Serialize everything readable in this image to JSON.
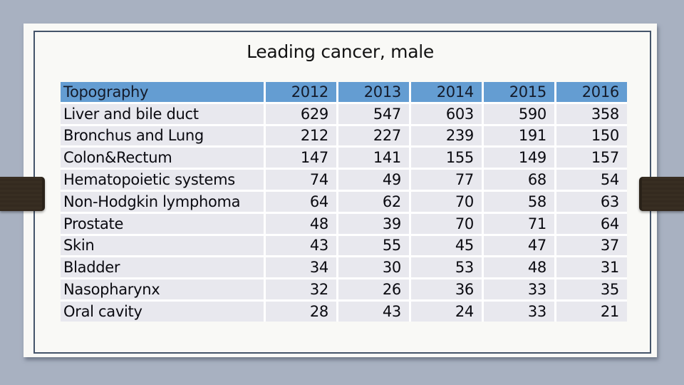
{
  "slide": {
    "title": "Leading cancer, male"
  },
  "colors": {
    "background": "#a8b1c1",
    "card_background": "#f9f9f6",
    "card_border": "#44546a",
    "table_header_bg": "#649dd2",
    "table_header_text": "#141b2a",
    "table_row_bg": "#e8e8ee",
    "table_gap": "#ffffff",
    "table_text": "#0a0a10",
    "title_text": "#121212",
    "accent_bar": "#382e22",
    "accent_bar_cap": "#2a2219"
  },
  "table": {
    "columns": [
      "Topography",
      "2012",
      "2013",
      "2014",
      "2015",
      "2016"
    ],
    "rows": [
      {
        "label": "Liver and bile duct",
        "values": [
          "629",
          "547",
          "603",
          "590",
          "358"
        ]
      },
      {
        "label": "Bronchus and Lung",
        "values": [
          "212",
          "227",
          "239",
          "191",
          "150"
        ]
      },
      {
        "label": "Colon&Rectum",
        "values": [
          "147",
          "141",
          "155",
          "149",
          "157"
        ]
      },
      {
        "label": "Hematopoietic systems",
        "values": [
          "74",
          "49",
          "77",
          "68",
          "54"
        ]
      },
      {
        "label": "Non-Hodgkin lymphoma",
        "values": [
          "64",
          "62",
          "70",
          "58",
          "63"
        ]
      },
      {
        "label": "Prostate",
        "values": [
          "48",
          "39",
          "70",
          "71",
          "64"
        ]
      },
      {
        "label": "Skin",
        "values": [
          "43",
          "55",
          "45",
          "47",
          "37"
        ]
      },
      {
        "label": "Bladder",
        "values": [
          "34",
          "30",
          "53",
          "48",
          "31"
        ]
      },
      {
        "label": "Nasopharynx",
        "values": [
          "32",
          "26",
          "36",
          "33",
          "35"
        ]
      },
      {
        "label": "Oral cavity",
        "values": [
          "28",
          "43",
          "24",
          "33",
          "21"
        ]
      }
    ]
  }
}
